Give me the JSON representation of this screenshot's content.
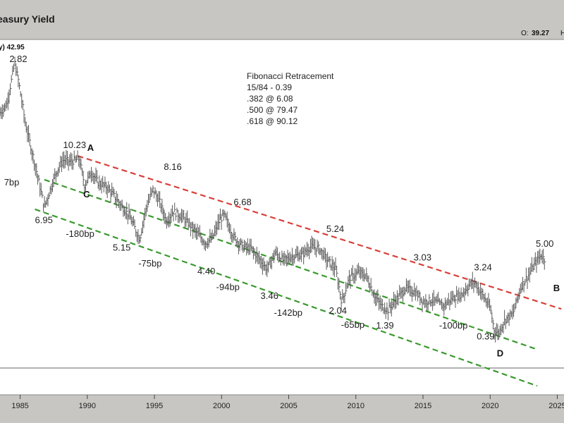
{
  "header": {
    "title": "easury Yield",
    "open_label": "O:",
    "open_value": "39.27",
    "high_label": "H",
    "series_info": "y) 42.95"
  },
  "fib": {
    "title": "Fibonacci Retracement",
    "lines": [
      "15/84 - 0.39",
      ".382 @ 6.08",
      ".500 @ 79.47",
      ".618 @ 90.12"
    ]
  },
  "colors": {
    "upper_channel": "#d9403a",
    "lower_channels": "#3a9a2e",
    "price": "#5a5a5a",
    "background": "#ffffff",
    "frame": "#c7c6c2"
  },
  "chart_data": {
    "type": "line",
    "title": "",
    "xlabel": "",
    "ylabel": "",
    "xlim": [
      1983.5,
      2025.5
    ],
    "ylim": [
      -2.5,
      15.5
    ],
    "x_ticks": [
      "1985",
      "1990",
      "1995",
      "2000",
      "2005",
      "2010",
      "2015",
      "2020",
      "2025"
    ],
    "grid": false,
    "series": [
      {
        "x": [
          1983.5,
          1984.0,
          1984.6,
          1984.9,
          1985.4,
          1986.1,
          1986.8,
          1987.2,
          1987.7,
          1988.2,
          1988.8,
          1989.4,
          1989.8,
          1990.3,
          1990.8,
          1991.5,
          1992.3,
          1993.1,
          1993.9,
          1994.4,
          1994.9,
          1995.4,
          1995.9,
          1996.4,
          1997.1,
          1997.9,
          1998.8,
          1999.3,
          1999.9,
          2000.2,
          2000.9,
          2001.6,
          2002.2,
          2002.9,
          2003.4,
          2004.0,
          2004.6,
          2005.2,
          2006.0,
          2006.6,
          2007.3,
          2007.9,
          2008.5,
          2008.95,
          2009.5,
          2010.2,
          2010.8,
          2011.4,
          2011.9,
          2012.4,
          2013.1,
          2013.7,
          2014.4,
          2015.1,
          2015.7,
          2016.5,
          2017.2,
          2017.9,
          2018.5,
          2018.85,
          2019.4,
          2020.0,
          2020.3,
          2020.6,
          2021.1,
          2021.7,
          2022.3,
          2022.9,
          2023.3,
          2023.8,
          2024.1
        ],
        "values": [
          11.8,
          12.2,
          14.3,
          13.3,
          11.2,
          9.2,
          7.0,
          7.8,
          8.8,
          9.4,
          9.3,
          9.45,
          8.1,
          8.8,
          8.25,
          8.0,
          7.3,
          6.6,
          5.4,
          7.0,
          7.9,
          7.25,
          6.3,
          6.8,
          6.5,
          5.9,
          5.2,
          5.4,
          6.4,
          6.6,
          5.5,
          5.0,
          4.9,
          4.3,
          3.85,
          4.7,
          4.3,
          4.5,
          4.6,
          5.0,
          4.9,
          4.3,
          3.85,
          2.2,
          3.4,
          3.7,
          3.5,
          2.5,
          2.0,
          1.8,
          2.4,
          2.9,
          2.7,
          2.2,
          2.3,
          2.0,
          2.4,
          2.6,
          3.1,
          3.2,
          2.6,
          1.9,
          0.8,
          0.6,
          1.3,
          1.6,
          3.0,
          3.6,
          4.1,
          4.6,
          4.3
        ]
      }
    ],
    "channels": [
      {
        "name": "upper",
        "from": [
          1989.3,
          9.6
        ],
        "to": [
          2025.3,
          1.85
        ]
      },
      {
        "name": "middle",
        "from": [
          1986.8,
          8.4
        ],
        "to": [
          2023.5,
          -0.2
        ]
      },
      {
        "name": "lower",
        "from": [
          1986.1,
          6.9
        ],
        "to": [
          2023.5,
          -2.05
        ]
      }
    ],
    "annotations": [
      {
        "text": "2.82",
        "x": 1984.2,
        "y": 14.35
      },
      {
        "text": "10.23",
        "x": 1988.2,
        "y": 10.0
      },
      {
        "text": "8.16",
        "x": 1995.7,
        "y": 8.9
      },
      {
        "text": "6.68",
        "x": 2000.9,
        "y": 7.1
      },
      {
        "text": "5.24",
        "x": 2007.8,
        "y": 5.75
      },
      {
        "text": "5.00",
        "x": 2023.4,
        "y": 5.0
      },
      {
        "text": "3.24",
        "x": 2018.8,
        "y": 3.8
      },
      {
        "text": "3.03",
        "x": 2014.3,
        "y": 4.3
      },
      {
        "text": "7bp",
        "x": 1983.8,
        "y": 8.1
      },
      {
        "text": "6.95",
        "x": 1986.1,
        "y": 6.2
      },
      {
        "text": "-180bp",
        "x": 1988.4,
        "y": 5.5
      },
      {
        "text": "5.15",
        "x": 1991.9,
        "y": 4.8
      },
      {
        "text": "-75bp",
        "x": 1993.8,
        "y": 4.0
      },
      {
        "text": "4.40",
        "x": 1998.2,
        "y": 3.6
      },
      {
        "text": "-94bp",
        "x": 1999.6,
        "y": 2.8
      },
      {
        "text": "3.46",
        "x": 2002.9,
        "y": 2.35
      },
      {
        "text": "-142bp",
        "x": 2003.9,
        "y": 1.5
      },
      {
        "text": "2.04",
        "x": 2008.0,
        "y": 1.6
      },
      {
        "text": "-65bp",
        "x": 2008.9,
        "y": 0.9
      },
      {
        "text": "1.39",
        "x": 2011.5,
        "y": 0.85
      },
      {
        "text": "-100bp",
        "x": 2016.2,
        "y": 0.85
      },
      {
        "text": "0.39",
        "x": 2019.0,
        "y": 0.3
      }
    ],
    "wave_labels": [
      {
        "text": "A",
        "x": 1990.0,
        "y": 9.85
      },
      {
        "text": "C",
        "x": 1989.7,
        "y": 7.5
      },
      {
        "text": "B",
        "x": 2024.7,
        "y": 2.75
      },
      {
        "text": "D",
        "x": 2020.5,
        "y": -0.55
      }
    ]
  }
}
